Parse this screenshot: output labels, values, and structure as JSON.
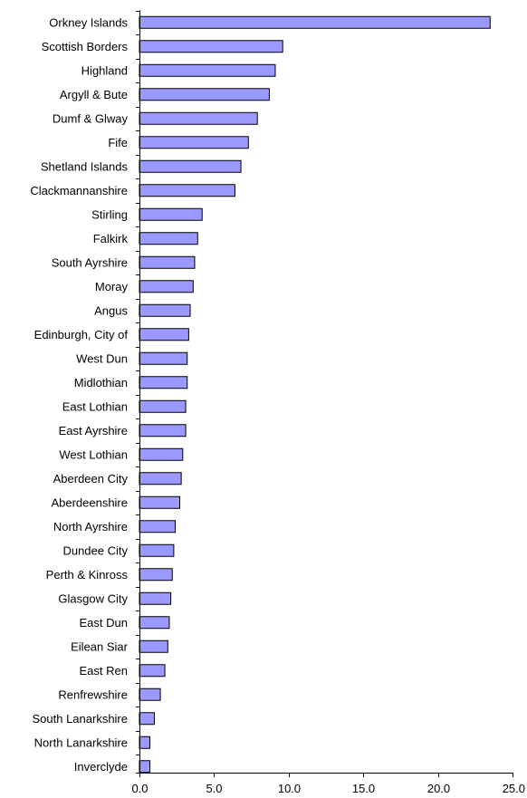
{
  "chart_data": {
    "type": "bar",
    "orientation": "horizontal",
    "title": "",
    "xlabel": "",
    "ylabel": "",
    "categories": [
      "Orkney Islands",
      "Scottish Borders",
      "Highland",
      "Argyll & Bute",
      "Dumf & Glway",
      "Fife",
      "Shetland Islands",
      "Clackmannanshire",
      "Stirling",
      "Falkirk",
      "South Ayrshire",
      "Moray",
      "Angus",
      "Edinburgh, City of",
      "West Dun",
      "Midlothian",
      "East Lothian",
      "East Ayrshire",
      "West Lothian",
      "Aberdeen City",
      "Aberdeenshire",
      "North Ayrshire",
      "Dundee City",
      "Perth & Kinross",
      "Glasgow City",
      "East Dun",
      "Eilean Siar",
      "East Ren",
      "Renfrewshire",
      "South Lanarkshire",
      "North Lanarkshire",
      "Inverclyde"
    ],
    "values": [
      23.5,
      9.6,
      9.1,
      8.7,
      7.9,
      7.3,
      6.8,
      6.4,
      4.2,
      3.9,
      3.7,
      3.6,
      3.4,
      3.3,
      3.2,
      3.2,
      3.1,
      3.1,
      2.9,
      2.8,
      2.7,
      2.4,
      2.3,
      2.2,
      2.1,
      2.0,
      1.9,
      1.7,
      1.4,
      1.0,
      0.7,
      0.7
    ],
    "xlim": [
      0,
      25
    ],
    "xticks": [
      "0.0",
      "5.0",
      "10.0",
      "15.0",
      "20.0",
      "25.0"
    ],
    "bar_color": "#9999ff",
    "bar_outline_color": "#000000",
    "grid": false,
    "legend": "none"
  }
}
